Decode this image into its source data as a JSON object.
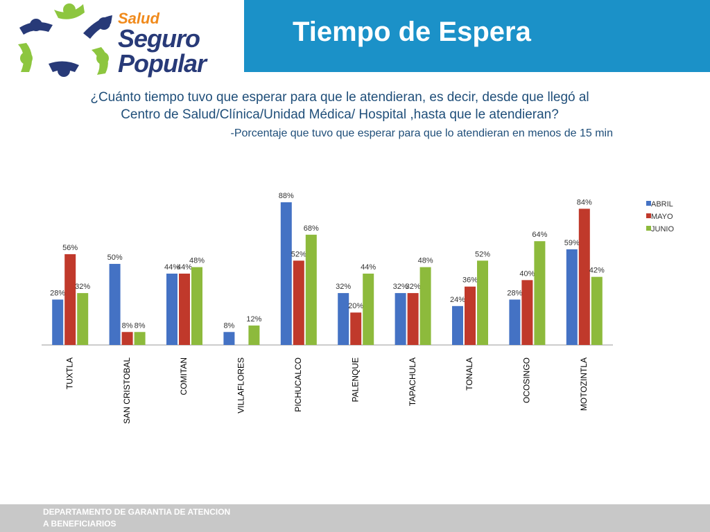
{
  "logo": {
    "salud": "Salud",
    "seguro": "Seguro",
    "popular": "Popular",
    "icon": "people-ring-logo-icon"
  },
  "header": {
    "title": "Tiempo de Espera"
  },
  "question": {
    "line1": "¿Cuánto tiempo  tuvo que esperar para que le atendieran, es decir, desde que llegó al",
    "line2": "Centro de Salud/Clínica/Unidad Médica/ Hospital ,hasta que le atendieran?",
    "subtitle": "-Porcentaje que tuvo que esperar para que lo atendieran en menos de 15 min"
  },
  "footer": {
    "line1": "DEPARTAMENTO DE GARANTIA DE ATENCION",
    "line2": "A BENEFICIARIOS"
  },
  "colors": {
    "header_band": "#1b91c8",
    "footer": "#c8c8c8",
    "text_blue": "#1f4e79"
  },
  "chart_data": {
    "type": "bar",
    "categories": [
      "TUXTLA",
      "SAN CRISTOBAL",
      "COMITAN",
      "VILLAFLORES",
      "PICHUCALCO",
      "PALENQUE",
      "TAPACHULA",
      "TONALA",
      "OCOSINGO",
      "MOTOZINTLA"
    ],
    "series": [
      {
        "name": "ABRIL",
        "color": "#4472c4",
        "values": [
          28,
          50,
          44,
          8,
          88,
          32,
          32,
          24,
          28,
          59
        ],
        "labels": [
          "28%",
          "50%",
          "44%",
          "8%",
          "88%",
          "32%",
          "32%",
          "24%",
          "28%",
          "59%"
        ]
      },
      {
        "name": "MAYO",
        "color": "#c0392b",
        "values": [
          56,
          8,
          44,
          null,
          52,
          20,
          32,
          36,
          40,
          84
        ],
        "labels": [
          "56%",
          "8%",
          "44%",
          "",
          "52%",
          "20%",
          "32%",
          "36%",
          "40%",
          "84%"
        ]
      },
      {
        "name": "JUNIO",
        "color": "#8dba3c",
        "values": [
          32,
          8,
          48,
          12,
          68,
          44,
          48,
          52,
          64,
          42
        ],
        "labels": [
          "32%",
          "8%",
          "48%",
          "12%",
          "68%",
          "44%",
          "48%",
          "52%",
          "64%",
          "42%"
        ]
      }
    ],
    "ylim": [
      0,
      90
    ],
    "grid": false,
    "legend": "right"
  }
}
